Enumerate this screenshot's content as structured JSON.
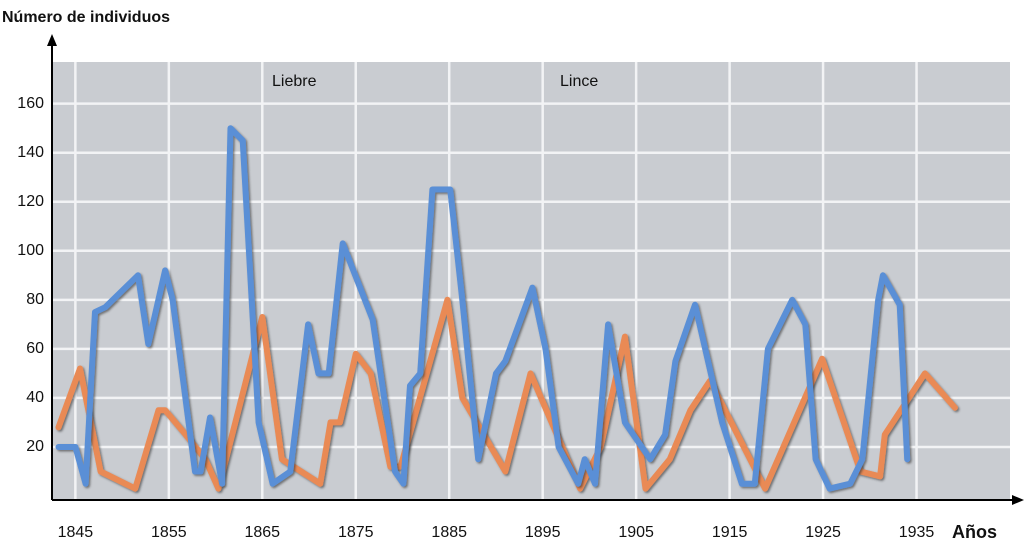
{
  "chart_data": {
    "type": "line",
    "y_label": "Número de individuos",
    "x_label": "Años",
    "xlim": [
      1842.5,
      1945
    ],
    "xticks": [
      1845,
      1855,
      1865,
      1875,
      1885,
      1895,
      1905,
      1915,
      1925,
      1935
    ],
    "ylim": [
      0,
      177
    ],
    "yticks": [
      20,
      40,
      60,
      80,
      100,
      120,
      140,
      160
    ],
    "grid": true,
    "series": [
      {
        "name": "Liebre",
        "color": "#e98a55",
        "x": [
          1843.2,
          1845.5,
          1847.7,
          1851.4,
          1853.9,
          1854.6,
          1856.8,
          1858.9,
          1860.3,
          1865,
          1867.1,
          1871.2,
          1872.3,
          1873.3,
          1875,
          1876.6,
          1878.7,
          1879.8,
          1884.8,
          1886.4,
          1891,
          1893.7,
          1899,
          1901.2,
          1903.8,
          1906,
          1908.6,
          1910.8,
          1912.9,
          1918.8,
          1924.9,
          1929,
          1931.1,
          1931.6,
          1935.9,
          1939.1
        ],
        "values": [
          28,
          52,
          10,
          3,
          35,
          35,
          25,
          15,
          3,
          73,
          15,
          5,
          30,
          30,
          58,
          50,
          12,
          12,
          80,
          40,
          10,
          50,
          3,
          20,
          65,
          3,
          15,
          35,
          47,
          3,
          56,
          10,
          8,
          25,
          50,
          36
        ]
      },
      {
        "name": "Lince",
        "color": "#5a8fd6",
        "x": [
          1843.2,
          1845,
          1846.1,
          1847.1,
          1848.2,
          1851.7,
          1852.8,
          1854.6,
          1855.4,
          1857.8,
          1858.4,
          1859.4,
          1860.7,
          1861.6,
          1862.9,
          1864.6,
          1866.1,
          1868,
          1869.9,
          1871,
          1872.1,
          1873.6,
          1876.8,
          1879.2,
          1880.1,
          1880.8,
          1881.9,
          1883.2,
          1885.1,
          1886.4,
          1888.1,
          1890,
          1891,
          1893.9,
          1895.3,
          1896.7,
          1898.8,
          1899.5,
          1900.6,
          1902,
          1903.8,
          1906.5,
          1908.1,
          1909.2,
          1911.3,
          1914.2,
          1916.3,
          1917.7,
          1919.1,
          1921.7,
          1923.1,
          1924.2,
          1925.7,
          1927.9,
          1929.2,
          1930.9,
          1931.4,
          1933.2,
          1934
        ],
        "values": [
          20,
          20,
          5,
          75,
          77,
          90,
          62,
          92,
          80,
          10,
          10,
          32,
          5,
          150,
          145,
          30,
          5,
          10,
          70,
          50,
          50,
          103,
          72,
          10,
          5,
          45,
          50,
          125,
          125,
          80,
          15,
          50,
          55,
          85,
          60,
          20,
          5,
          15,
          5,
          70,
          30,
          15,
          25,
          55,
          78,
          30,
          5,
          5,
          60,
          80,
          70,
          15,
          3,
          5,
          15,
          80,
          90,
          78,
          15
        ]
      }
    ]
  }
}
